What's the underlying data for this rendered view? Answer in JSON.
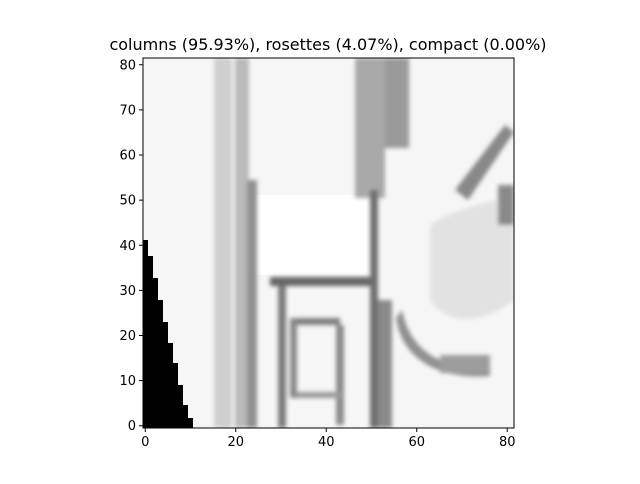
{
  "figure": {
    "title": "columns (95.93%), rosettes (4.07%), compact (0.00%)"
  },
  "chart_data": {
    "type": "heatmap",
    "title": "columns (95.93%), rosettes (4.07%), compact (0.00%)",
    "colormap": "gray",
    "image_size": [
      82,
      82
    ],
    "xlim": [
      -0.5,
      81.5
    ],
    "ylim": [
      81.5,
      -0.5
    ],
    "x_ticks": [
      0,
      20,
      40,
      60,
      80
    ],
    "y_ticks": [
      0,
      10,
      20,
      30,
      40,
      50,
      60,
      70,
      80
    ],
    "x_tick_labels": [
      "0",
      "20",
      "40",
      "60",
      "80"
    ],
    "y_tick_labels": [
      "0",
      "10",
      "20",
      "30",
      "40",
      "50",
      "60",
      "70",
      "80"
    ],
    "classes": [
      {
        "name": "columns",
        "percent": 95.93
      },
      {
        "name": "rosettes",
        "percent": 4.07
      },
      {
        "name": "compact",
        "percent": 0.0
      }
    ]
  }
}
